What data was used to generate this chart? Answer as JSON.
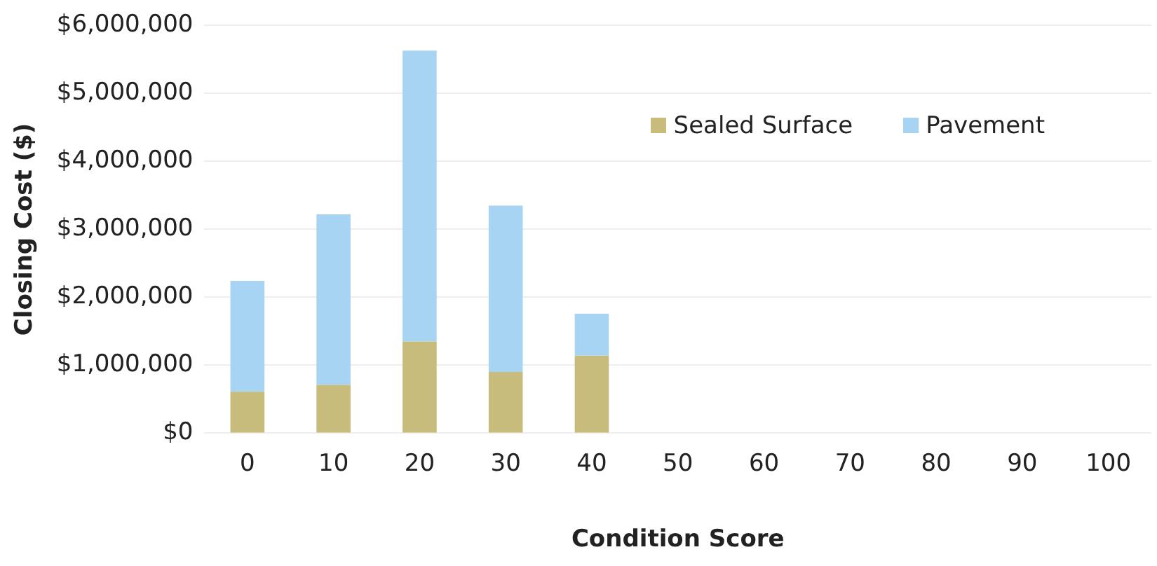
{
  "chart_data": {
    "type": "bar",
    "stacked": true,
    "xlabel": "Condition Score",
    "ylabel": "Closing Cost ($)",
    "categories": [
      "0",
      "10",
      "20",
      "30",
      "40",
      "50",
      "60",
      "70",
      "80",
      "90",
      "100"
    ],
    "series": [
      {
        "name": "Sealed Surface",
        "color": "#c8bc7c",
        "values": [
          610000,
          710000,
          1350000,
          900000,
          1140000,
          null,
          null,
          null,
          null,
          null,
          null
        ]
      },
      {
        "name": "Pavement",
        "color": "#a8d4f4",
        "values": [
          1630000,
          2510000,
          4280000,
          2450000,
          620000,
          null,
          null,
          null,
          null,
          null,
          null
        ]
      }
    ],
    "ylim": [
      0,
      6000000
    ],
    "yticks": [
      {
        "value": 0,
        "label": "$0"
      },
      {
        "value": 1000000,
        "label": "$1,000,000"
      },
      {
        "value": 2000000,
        "label": "$2,000,000"
      },
      {
        "value": 3000000,
        "label": "$3,000,000"
      },
      {
        "value": 4000000,
        "label": "$4,000,000"
      },
      {
        "value": 5000000,
        "label": "$5,000,000"
      },
      {
        "value": 6000000,
        "label": "$6,000,000"
      }
    ],
    "grid": "y",
    "legend": "top right"
  }
}
